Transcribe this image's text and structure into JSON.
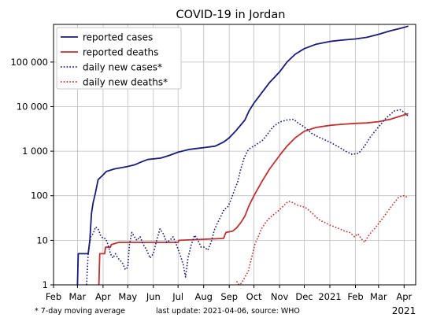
{
  "chart_data": {
    "type": "line",
    "title": "COVID-19 in Jordan",
    "y_scale": "log",
    "ylim": [
      1,
      700000
    ],
    "xlim": [
      "2020-02-01",
      "2021-04-15"
    ],
    "grid": true,
    "legend_position": "top-left",
    "y_ticks": [
      {
        "value": 1,
        "label": "1"
      },
      {
        "value": 10,
        "label": "10"
      },
      {
        "value": 100,
        "label": "100"
      },
      {
        "value": 1000,
        "label": "1 000"
      },
      {
        "value": 10000,
        "label": "10 000"
      },
      {
        "value": 100000,
        "label": "100 000"
      }
    ],
    "x_ticks": [
      {
        "date": "2020-02-01",
        "label": "Feb"
      },
      {
        "date": "2020-03-01",
        "label": "Mar"
      },
      {
        "date": "2020-04-01",
        "label": "Apr"
      },
      {
        "date": "2020-05-01",
        "label": "May"
      },
      {
        "date": "2020-06-01",
        "label": "Jun"
      },
      {
        "date": "2020-07-01",
        "label": "Jul"
      },
      {
        "date": "2020-08-01",
        "label": "Aug"
      },
      {
        "date": "2020-09-01",
        "label": "Sep"
      },
      {
        "date": "2020-10-01",
        "label": "Oct"
      },
      {
        "date": "2020-11-01",
        "label": "Nov"
      },
      {
        "date": "2020-12-01",
        "label": "Dec"
      },
      {
        "date": "2021-01-01",
        "label": "2021"
      },
      {
        "date": "2021-02-01",
        "label": "Feb"
      },
      {
        "date": "2021-03-01",
        "label": "Mar"
      },
      {
        "date": "2021-04-01",
        "label": "Apr"
      }
    ],
    "x_axis_year_label": "2021",
    "series": [
      {
        "name": "reported cases",
        "color": "#1a1a7a",
        "style": "solid",
        "points": [
          [
            "2020-03-01",
            1
          ],
          [
            "2020-03-02",
            5
          ],
          [
            "2020-03-14",
            5
          ],
          [
            "2020-03-16",
            10
          ],
          [
            "2020-03-18",
            40
          ],
          [
            "2020-03-20",
            70
          ],
          [
            "2020-03-23",
            120
          ],
          [
            "2020-03-26",
            230
          ],
          [
            "2020-03-31",
            280
          ],
          [
            "2020-04-05",
            350
          ],
          [
            "2020-04-15",
            400
          ],
          [
            "2020-04-30",
            450
          ],
          [
            "2020-05-10",
            500
          ],
          [
            "2020-05-15",
            550
          ],
          [
            "2020-05-25",
            650
          ],
          [
            "2020-06-10",
            700
          ],
          [
            "2020-06-20",
            800
          ],
          [
            "2020-07-01",
            950
          ],
          [
            "2020-07-15",
            1100
          ],
          [
            "2020-08-01",
            1200
          ],
          [
            "2020-08-15",
            1300
          ],
          [
            "2020-08-25",
            1600
          ],
          [
            "2020-09-01",
            2000
          ],
          [
            "2020-09-10",
            3000
          ],
          [
            "2020-09-20",
            5000
          ],
          [
            "2020-09-25",
            8000
          ],
          [
            "2020-10-01",
            12000
          ],
          [
            "2020-10-10",
            20000
          ],
          [
            "2020-10-20",
            35000
          ],
          [
            "2020-11-01",
            60000
          ],
          [
            "2020-11-10",
            100000
          ],
          [
            "2020-11-20",
            150000
          ],
          [
            "2020-12-01",
            200000
          ],
          [
            "2020-12-15",
            250000
          ],
          [
            "2021-01-01",
            290000
          ],
          [
            "2021-01-15",
            310000
          ],
          [
            "2021-02-01",
            330000
          ],
          [
            "2021-02-15",
            360000
          ],
          [
            "2021-03-01",
            420000
          ],
          [
            "2021-03-15",
            500000
          ],
          [
            "2021-04-01",
            600000
          ],
          [
            "2021-04-06",
            640000
          ]
        ]
      },
      {
        "name": "reported deaths",
        "color": "#c03030",
        "style": "solid",
        "points": [
          [
            "2020-03-27",
            1
          ],
          [
            "2020-03-28",
            5
          ],
          [
            "2020-04-03",
            5
          ],
          [
            "2020-04-04",
            7
          ],
          [
            "2020-04-10",
            7
          ],
          [
            "2020-04-11",
            8
          ],
          [
            "2020-04-20",
            9
          ],
          [
            "2020-07-01",
            9
          ],
          [
            "2020-07-02",
            10
          ],
          [
            "2020-08-25",
            11
          ],
          [
            "2020-08-28",
            15
          ],
          [
            "2020-09-05",
            16
          ],
          [
            "2020-09-10",
            19
          ],
          [
            "2020-09-15",
            25
          ],
          [
            "2020-09-20",
            35
          ],
          [
            "2020-09-25",
            60
          ],
          [
            "2020-10-01",
            100
          ],
          [
            "2020-10-10",
            200
          ],
          [
            "2020-10-20",
            400
          ],
          [
            "2020-11-01",
            800
          ],
          [
            "2020-11-10",
            1300
          ],
          [
            "2020-11-20",
            2000
          ],
          [
            "2020-12-01",
            2800
          ],
          [
            "2020-12-15",
            3400
          ],
          [
            "2021-01-01",
            3800
          ],
          [
            "2021-01-15",
            4000
          ],
          [
            "2021-02-01",
            4200
          ],
          [
            "2021-02-15",
            4300
          ],
          [
            "2021-03-01",
            4600
          ],
          [
            "2021-03-15",
            5200
          ],
          [
            "2021-04-01",
            6500
          ],
          [
            "2021-04-06",
            7000
          ]
        ]
      },
      {
        "name": "daily new cases*",
        "color": "#1a1a7a",
        "style": "dotted",
        "points": [
          [
            "2020-03-12",
            1
          ],
          [
            "2020-03-14",
            5
          ],
          [
            "2020-03-17",
            12
          ],
          [
            "2020-03-20",
            14
          ],
          [
            "2020-03-23",
            20
          ],
          [
            "2020-03-26",
            18
          ],
          [
            "2020-03-29",
            13
          ],
          [
            "2020-04-01",
            11
          ],
          [
            "2020-04-04",
            11
          ],
          [
            "2020-04-07",
            8
          ],
          [
            "2020-04-10",
            5
          ],
          [
            "2020-04-13",
            4
          ],
          [
            "2020-04-16",
            5
          ],
          [
            "2020-04-19",
            4
          ],
          [
            "2020-04-22",
            3.5
          ],
          [
            "2020-04-25",
            3
          ],
          [
            "2020-04-28",
            2.2
          ],
          [
            "2020-05-01",
            2.5
          ],
          [
            "2020-05-03",
            8
          ],
          [
            "2020-05-06",
            15
          ],
          [
            "2020-05-09",
            12
          ],
          [
            "2020-05-12",
            10
          ],
          [
            "2020-05-16",
            12
          ],
          [
            "2020-05-20",
            8
          ],
          [
            "2020-05-24",
            6
          ],
          [
            "2020-05-28",
            4
          ],
          [
            "2020-06-01",
            5
          ],
          [
            "2020-06-05",
            10
          ],
          [
            "2020-06-09",
            18
          ],
          [
            "2020-06-13",
            14
          ],
          [
            "2020-06-17",
            9
          ],
          [
            "2020-06-21",
            10
          ],
          [
            "2020-06-25",
            12
          ],
          [
            "2020-06-29",
            8
          ],
          [
            "2020-07-03",
            5
          ],
          [
            "2020-07-07",
            3
          ],
          [
            "2020-07-10",
            1.5
          ],
          [
            "2020-07-13",
            4
          ],
          [
            "2020-07-17",
            8
          ],
          [
            "2020-07-21",
            13
          ],
          [
            "2020-07-25",
            10
          ],
          [
            "2020-07-29",
            7
          ],
          [
            "2020-08-02",
            7
          ],
          [
            "2020-08-06",
            6
          ],
          [
            "2020-08-10",
            9
          ],
          [
            "2020-08-14",
            17
          ],
          [
            "2020-08-18",
            25
          ],
          [
            "2020-08-22",
            35
          ],
          [
            "2020-08-26",
            50
          ],
          [
            "2020-08-30",
            55
          ],
          [
            "2020-09-03",
            80
          ],
          [
            "2020-09-07",
            130
          ],
          [
            "2020-09-11",
            200
          ],
          [
            "2020-09-15",
            400
          ],
          [
            "2020-09-19",
            700
          ],
          [
            "2020-09-23",
            1000
          ],
          [
            "2020-09-27",
            1200
          ],
          [
            "2020-10-01",
            1300
          ],
          [
            "2020-10-06",
            1500
          ],
          [
            "2020-10-12",
            1800
          ],
          [
            "2020-10-18",
            2500
          ],
          [
            "2020-10-24",
            3500
          ],
          [
            "2020-11-01",
            4500
          ],
          [
            "2020-11-10",
            5000
          ],
          [
            "2020-11-18",
            5200
          ],
          [
            "2020-11-24",
            4200
          ],
          [
            "2020-12-01",
            3500
          ],
          [
            "2020-12-10",
            2500
          ],
          [
            "2020-12-20",
            2000
          ],
          [
            "2021-01-01",
            1600
          ],
          [
            "2021-01-10",
            1300
          ],
          [
            "2021-01-20",
            1000
          ],
          [
            "2021-01-28",
            850
          ],
          [
            "2021-02-05",
            900
          ],
          [
            "2021-02-12",
            1300
          ],
          [
            "2021-02-20",
            2200
          ],
          [
            "2021-03-01",
            3500
          ],
          [
            "2021-03-10",
            5500
          ],
          [
            "2021-03-20",
            8000
          ],
          [
            "2021-03-27",
            8500
          ],
          [
            "2021-04-01",
            7500
          ],
          [
            "2021-04-06",
            6000
          ]
        ]
      },
      {
        "name": "daily new deaths*",
        "color": "#c03030",
        "style": "dotted",
        "points": [
          [
            "2020-09-10",
            1.2
          ],
          [
            "2020-09-13",
            1.0
          ],
          [
            "2020-09-16",
            1.1
          ],
          [
            "2020-09-20",
            1.5
          ],
          [
            "2020-09-24",
            2
          ],
          [
            "2020-09-28",
            4
          ],
          [
            "2020-10-02",
            8
          ],
          [
            "2020-10-06",
            12
          ],
          [
            "2020-10-10",
            18
          ],
          [
            "2020-10-15",
            25
          ],
          [
            "2020-10-20",
            32
          ],
          [
            "2020-10-25",
            38
          ],
          [
            "2020-10-30",
            45
          ],
          [
            "2020-11-04",
            55
          ],
          [
            "2020-11-08",
            65
          ],
          [
            "2020-11-12",
            75
          ],
          [
            "2020-11-17",
            70
          ],
          [
            "2020-11-22",
            62
          ],
          [
            "2020-11-27",
            58
          ],
          [
            "2020-12-02",
            55
          ],
          [
            "2020-12-08",
            45
          ],
          [
            "2020-12-14",
            35
          ],
          [
            "2020-12-20",
            28
          ],
          [
            "2020-12-26",
            25
          ],
          [
            "2021-01-01",
            22
          ],
          [
            "2021-01-07",
            20
          ],
          [
            "2021-01-13",
            18
          ],
          [
            "2021-01-19",
            16
          ],
          [
            "2021-01-25",
            15
          ],
          [
            "2021-01-31",
            12
          ],
          [
            "2021-02-04",
            14
          ],
          [
            "2021-02-08",
            11
          ],
          [
            "2021-02-12",
            9
          ],
          [
            "2021-02-16",
            12
          ],
          [
            "2021-02-20",
            15
          ],
          [
            "2021-02-24",
            18
          ],
          [
            "2021-03-02",
            25
          ],
          [
            "2021-03-08",
            35
          ],
          [
            "2021-03-14",
            50
          ],
          [
            "2021-03-20",
            70
          ],
          [
            "2021-03-26",
            95
          ],
          [
            "2021-04-01",
            100
          ],
          [
            "2021-04-06",
            90
          ]
        ]
      }
    ]
  },
  "footer": {
    "note": "* 7-day moving average",
    "update": "last update: 2021-04-06, source: WHO"
  }
}
